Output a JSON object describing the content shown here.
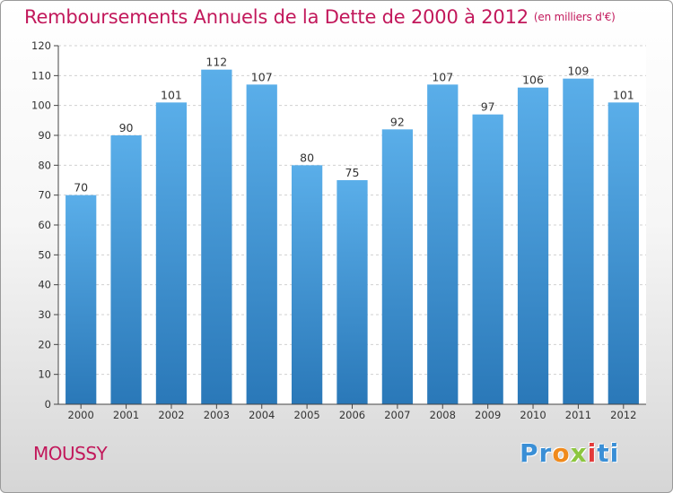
{
  "header": {
    "title": "Remboursements Annuels de la Dette de 2000 à 2012",
    "unit": "(en milliers d'€)"
  },
  "footer": {
    "commune": "MOUSSY",
    "logo_letters": [
      {
        "char": "P",
        "color": "#3a8fd6"
      },
      {
        "char": "r",
        "color": "#3a8fd6"
      },
      {
        "char": "o",
        "color": "#f08a1c"
      },
      {
        "char": "x",
        "color": "#8cc63f"
      },
      {
        "char": "i",
        "color": "#e33b3b"
      },
      {
        "char": "t",
        "color": "#3a8fd6"
      },
      {
        "char": "i",
        "color": "#3a8fd6"
      }
    ]
  },
  "colors": {
    "title": "#c2185b",
    "bar_top": "#5aaee9",
    "bar_bottom": "#2a78b8"
  },
  "chart_data": {
    "type": "bar",
    "categories": [
      "2000",
      "2001",
      "2002",
      "2003",
      "2004",
      "2005",
      "2006",
      "2007",
      "2008",
      "2009",
      "2010",
      "2011",
      "2012"
    ],
    "values": [
      70,
      90,
      101,
      112,
      107,
      80,
      75,
      92,
      107,
      97,
      106,
      109,
      101
    ],
    "title": "Remboursements Annuels de la Dette de 2000 à 2012",
    "xlabel": "",
    "ylabel": "",
    "ylim": [
      0,
      120
    ],
    "yticks": [
      0,
      10,
      20,
      30,
      40,
      50,
      60,
      70,
      80,
      90,
      100,
      110,
      120
    ],
    "grid": true,
    "data_labels": true
  }
}
